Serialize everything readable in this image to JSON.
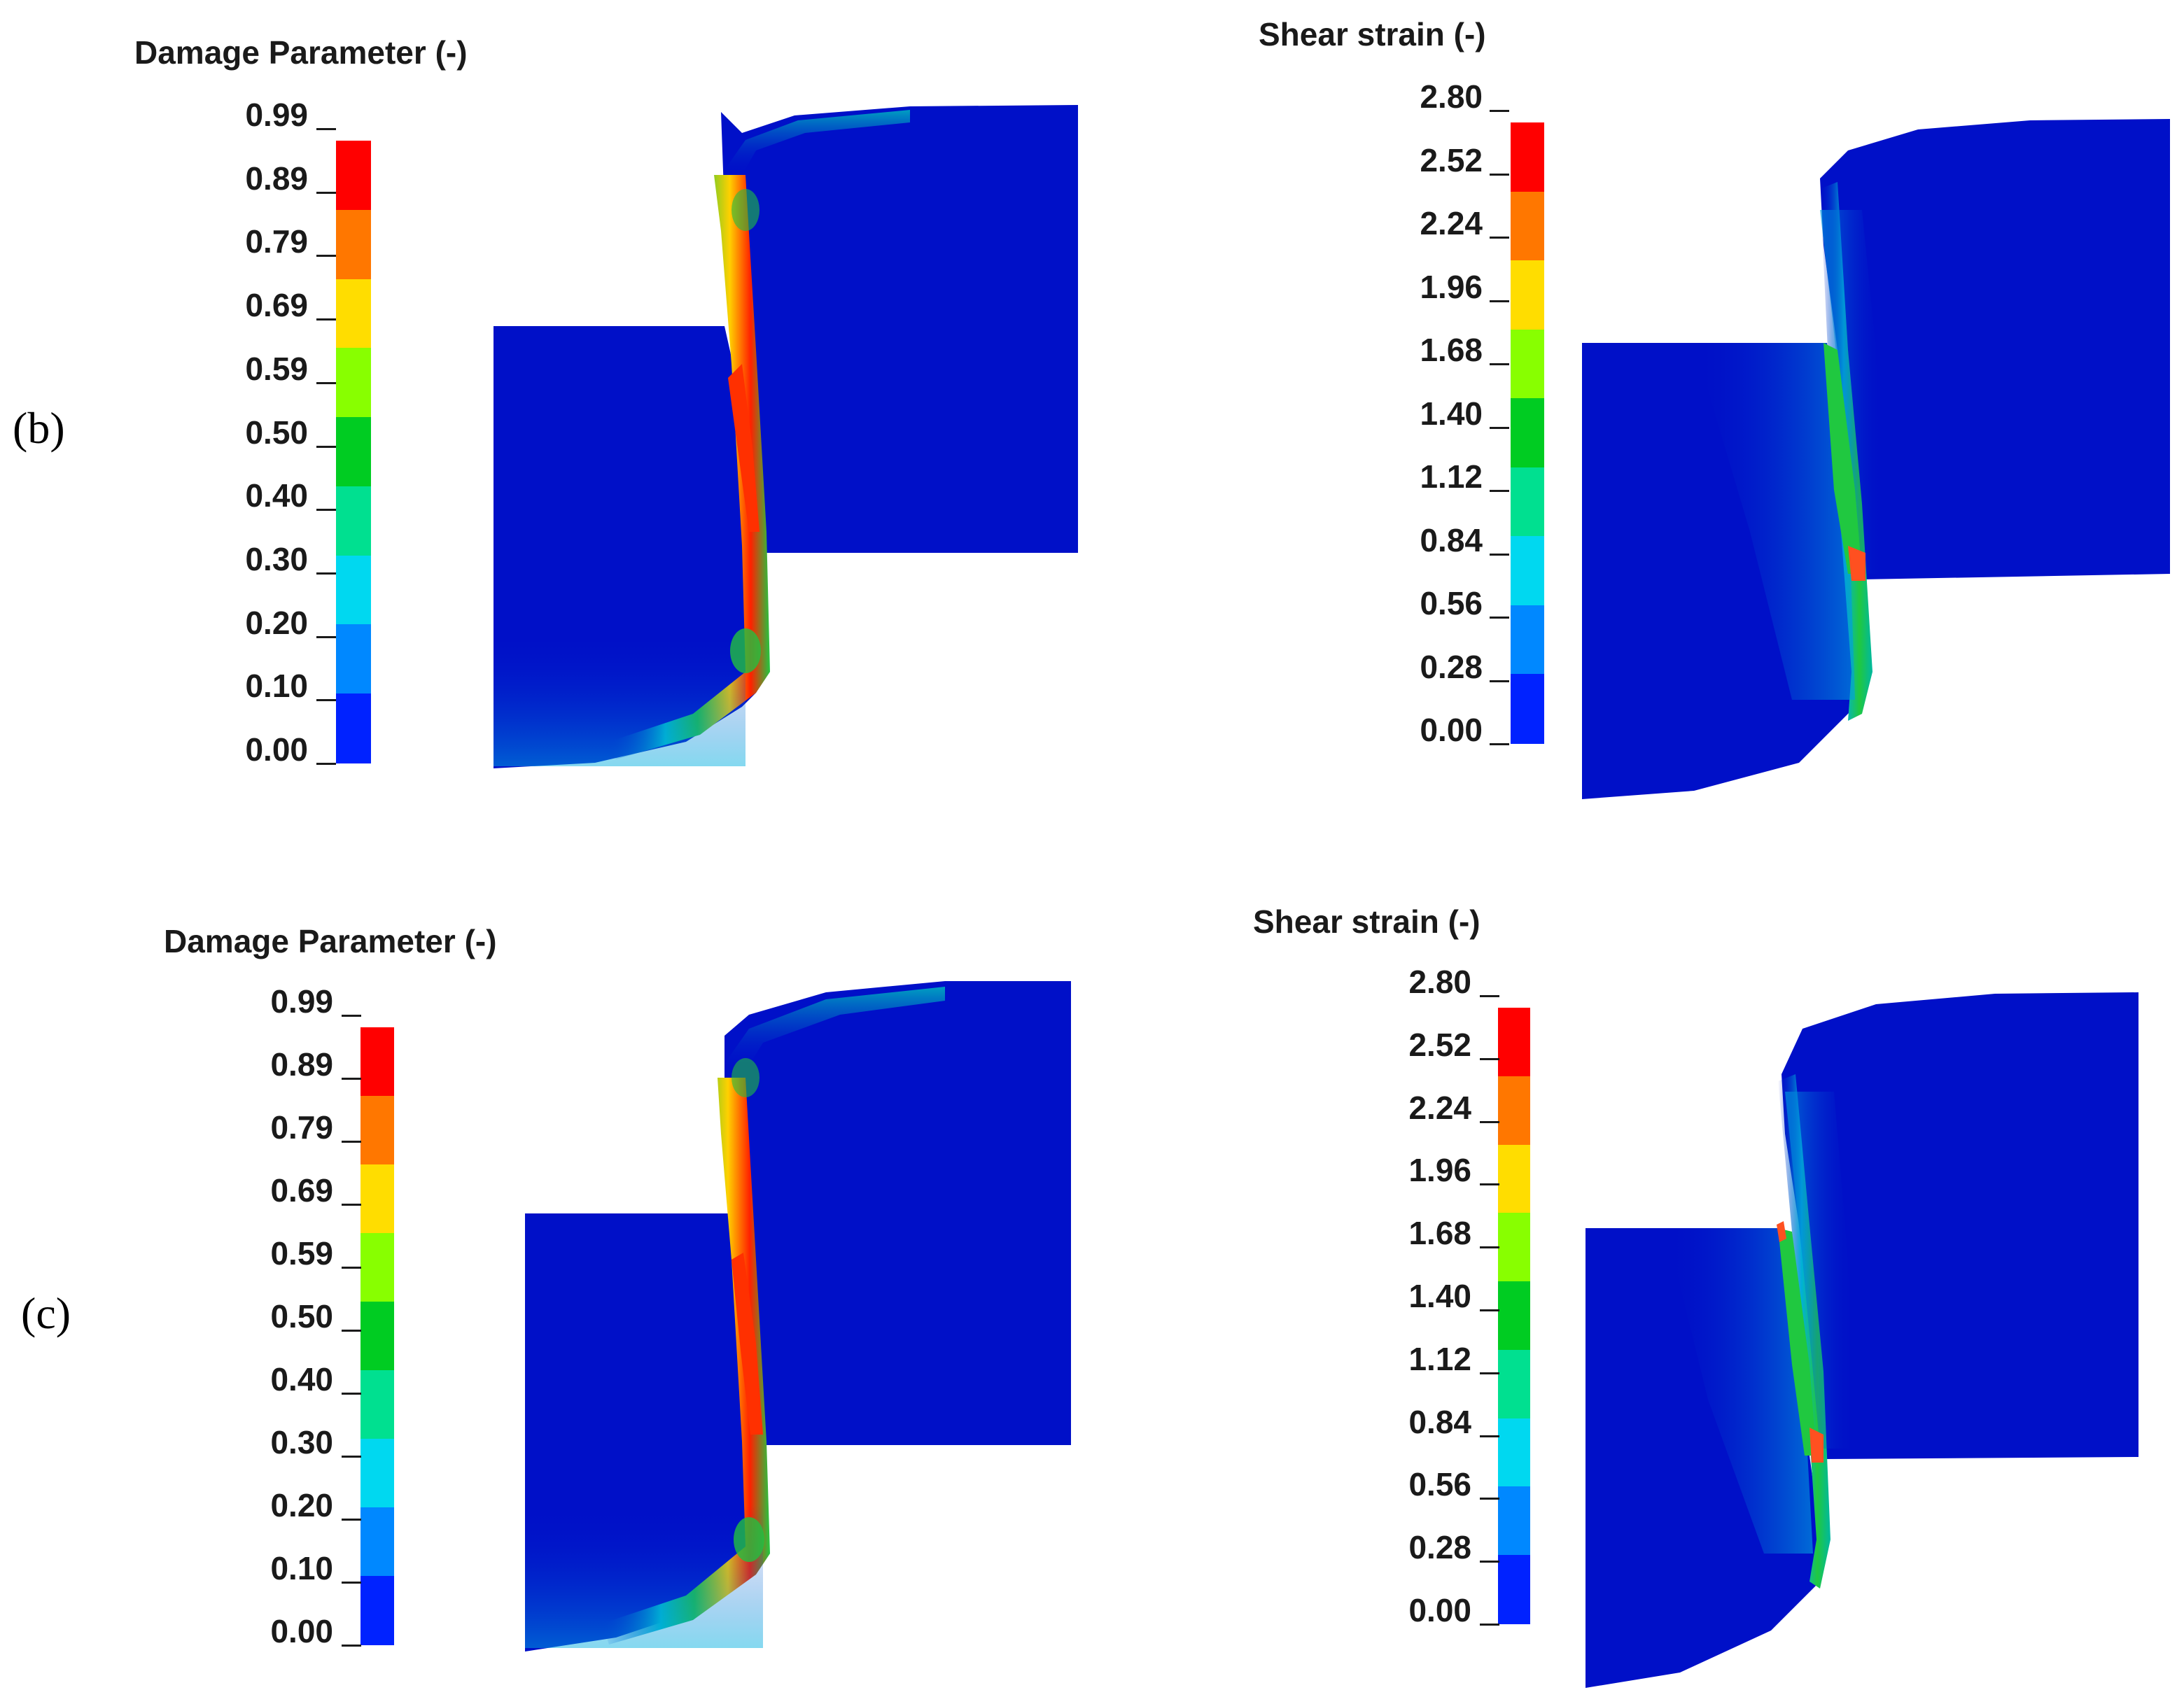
{
  "panels": [
    {
      "label": "(b)",
      "damage": {
        "title": "Damage Parameter (-)",
        "ticks": [
          "0.99",
          "0.89",
          "0.79",
          "0.69",
          "0.59",
          "0.50",
          "0.40",
          "0.30",
          "0.20",
          "0.10",
          "0.00"
        ]
      },
      "shear": {
        "title": "Shear strain (-)",
        "ticks": [
          "2.80",
          "2.52",
          "2.24",
          "1.96",
          "1.68",
          "1.40",
          "1.12",
          "0.84",
          "0.56",
          "0.28",
          "0.00"
        ]
      }
    },
    {
      "label": "(c)",
      "damage": {
        "title": "Damage Parameter (-)",
        "ticks": [
          "0.99",
          "0.89",
          "0.79",
          "0.69",
          "0.59",
          "0.50",
          "0.40",
          "0.30",
          "0.20",
          "0.10",
          "0.00"
        ]
      },
      "shear": {
        "title": "Shear strain (-)",
        "ticks": [
          "2.80",
          "2.52",
          "2.24",
          "1.96",
          "1.68",
          "1.40",
          "1.12",
          "0.84",
          "0.56",
          "0.28",
          "0.00"
        ]
      }
    }
  ],
  "colorbar_colors": [
    "#ff0000",
    "#ff7700",
    "#ffdd00",
    "#88ff00",
    "#00cc22",
    "#00e090",
    "#00d8f0",
    "#0088ff",
    "#0022ff"
  ],
  "colors": {
    "specimen_blue": "#0010c8",
    "shear_band_green": "#20c840",
    "shear_band_red": "#ff2000"
  }
}
